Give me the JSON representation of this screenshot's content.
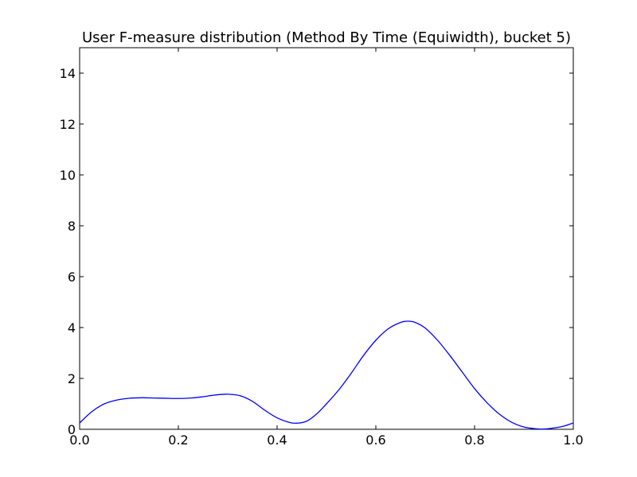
{
  "chart_data": {
    "type": "line",
    "title": "User F-measure distribution (Method By Time (Equiwidth), bucket 5)",
    "xlabel": "",
    "ylabel": "",
    "xlim": [
      0.0,
      1.0
    ],
    "ylim": [
      0,
      15
    ],
    "x_ticks": [
      "0.0",
      "0.2",
      "0.4",
      "0.6",
      "0.8",
      "1.0"
    ],
    "y_ticks": [
      "0",
      "2",
      "4",
      "6",
      "8",
      "10",
      "12",
      "14"
    ],
    "grid": false,
    "legend": "none",
    "colors": {
      "line": "#0000ff"
    },
    "series": [
      {
        "x": [
          0.0,
          0.025,
          0.05,
          0.075,
          0.1,
          0.125,
          0.15,
          0.175,
          0.2,
          0.225,
          0.25,
          0.275,
          0.3,
          0.325,
          0.35,
          0.375,
          0.4,
          0.425,
          0.44,
          0.46,
          0.48,
          0.5,
          0.525,
          0.55,
          0.575,
          0.6,
          0.625,
          0.65,
          0.665,
          0.68,
          0.7,
          0.725,
          0.75,
          0.775,
          0.8,
          0.825,
          0.85,
          0.875,
          0.9,
          0.925,
          0.94,
          0.96,
          0.98,
          1.0
        ],
        "values": [
          0.25,
          0.7,
          1.0,
          1.15,
          1.22,
          1.24,
          1.23,
          1.22,
          1.21,
          1.23,
          1.28,
          1.35,
          1.38,
          1.32,
          1.1,
          0.75,
          0.45,
          0.27,
          0.24,
          0.32,
          0.6,
          1.0,
          1.55,
          2.2,
          2.9,
          3.5,
          3.95,
          4.2,
          4.25,
          4.2,
          3.98,
          3.5,
          2.9,
          2.25,
          1.6,
          1.05,
          0.6,
          0.28,
          0.09,
          0.02,
          0.01,
          0.05,
          0.12,
          0.25
        ]
      }
    ]
  }
}
